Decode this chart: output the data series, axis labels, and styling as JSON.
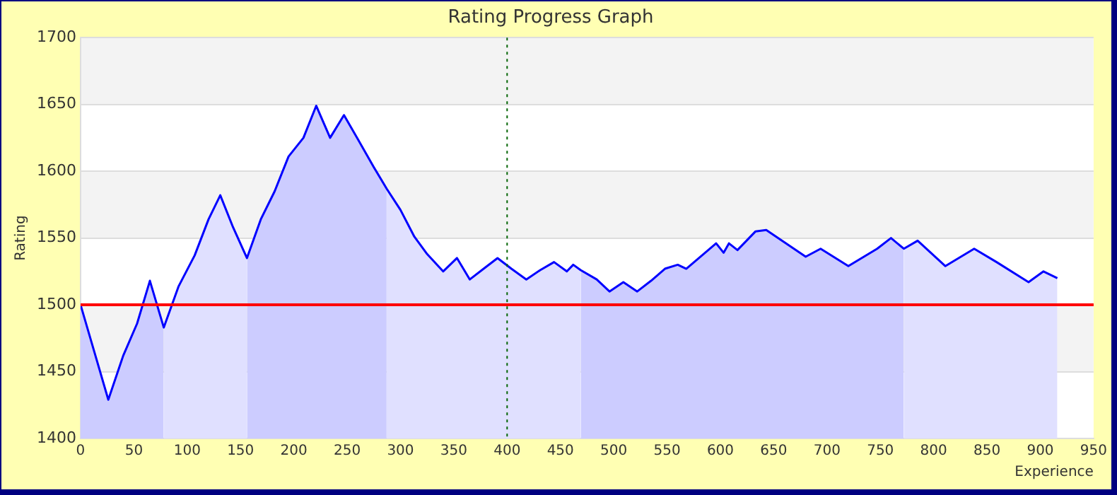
{
  "chart_data": {
    "type": "area",
    "title": "Rating Progress Graph",
    "xlabel": "Experience",
    "ylabel": "Rating",
    "series": [
      {
        "color": "#ccccff",
        "x": [
          0,
          26,
          40,
          53,
          65,
          78
        ],
        "values": [
          1500,
          1429,
          1462,
          1486,
          1518,
          1483
        ]
      },
      {
        "color": "#e0e0ff",
        "x": [
          78,
          92,
          107,
          120,
          131,
          143,
          156
        ],
        "values": [
          1483,
          1514,
          1537,
          1564,
          1582,
          1558,
          1535
        ]
      },
      {
        "color": "#ccccff",
        "x": [
          156,
          169,
          182,
          195,
          209,
          221,
          234,
          247,
          260,
          275,
          287
        ],
        "values": [
          1535,
          1564,
          1585,
          1611,
          1625,
          1649,
          1625,
          1642,
          1624,
          1603,
          1587
        ]
      },
      {
        "color": "#e0e0ff",
        "x": [
          287,
          300,
          313,
          325,
          340,
          353,
          365,
          378,
          391,
          404,
          418,
          431,
          444,
          456,
          462,
          469
        ],
        "values": [
          1587,
          1571,
          1551,
          1538,
          1525,
          1535,
          1519,
          1527,
          1535,
          1527,
          1519,
          1526,
          1532,
          1525,
          1530,
          1526
        ]
      },
      {
        "color": "#ccccff",
        "x": [
          469,
          484,
          496,
          509,
          522,
          535,
          548,
          560,
          568,
          596,
          603,
          608,
          616,
          633,
          643,
          680,
          694,
          720,
          747,
          760,
          772
        ],
        "values": [
          1526,
          1519,
          1510,
          1517,
          1510,
          1518,
          1527,
          1530,
          1527,
          1546,
          1539,
          1546,
          1541,
          1555,
          1556,
          1536,
          1542,
          1529,
          1542,
          1550,
          1542
        ]
      },
      {
        "color": "#e0e0ff",
        "x": [
          772,
          785,
          811,
          838,
          859,
          889,
          903,
          916
        ],
        "values": [
          1542,
          1548,
          1529,
          1542,
          1532,
          1517,
          1525,
          1520
        ]
      },
      {
        "type": "line",
        "color": "#0000ff",
        "x": [
          0,
          26,
          40,
          53,
          65,
          78,
          92,
          107,
          120,
          131,
          143,
          156,
          169,
          182,
          195,
          209,
          221,
          234,
          247,
          260,
          275,
          287,
          300,
          313,
          325,
          340,
          353,
          365,
          378,
          391,
          404,
          418,
          431,
          444,
          456,
          462,
          469,
          484,
          496,
          509,
          522,
          535,
          548,
          560,
          568,
          596,
          603,
          608,
          616,
          633,
          643,
          680,
          694,
          720,
          747,
          760,
          772,
          785,
          811,
          838,
          859,
          889,
          903,
          916
        ],
        "values": [
          1500,
          1429,
          1462,
          1486,
          1518,
          1483,
          1514,
          1537,
          1564,
          1582,
          1558,
          1535,
          1564,
          1585,
          1611,
          1625,
          1649,
          1625,
          1642,
          1624,
          1603,
          1587,
          1571,
          1551,
          1538,
          1525,
          1535,
          1519,
          1527,
          1535,
          1527,
          1519,
          1526,
          1532,
          1525,
          1530,
          1526,
          1519,
          1510,
          1517,
          1510,
          1518,
          1527,
          1530,
          1527,
          1546,
          1539,
          1546,
          1541,
          1555,
          1556,
          1536,
          1542,
          1529,
          1542,
          1550,
          1542,
          1548,
          1529,
          1542,
          1532,
          1517,
          1525,
          1520
        ]
      }
    ],
    "xlim": [
      0,
      950
    ],
    "xticks": [
      0,
      50,
      100,
      150,
      200,
      250,
      300,
      350,
      400,
      450,
      500,
      550,
      600,
      650,
      700,
      750,
      800,
      850,
      900,
      950
    ],
    "ylim": [
      1400,
      1700
    ],
    "yticks": [
      1400,
      1450,
      1500,
      1550,
      1600,
      1650,
      1700
    ],
    "grid": "y",
    "legend": false,
    "marker": "none",
    "line_style": "solid",
    "ref_lines": [
      {
        "axis": "y",
        "value": 1500,
        "color": "#ff0000",
        "line_style": "solid"
      },
      {
        "axis": "x",
        "value": 400,
        "color": "#006400",
        "line_style": "dotted"
      }
    ]
  }
}
